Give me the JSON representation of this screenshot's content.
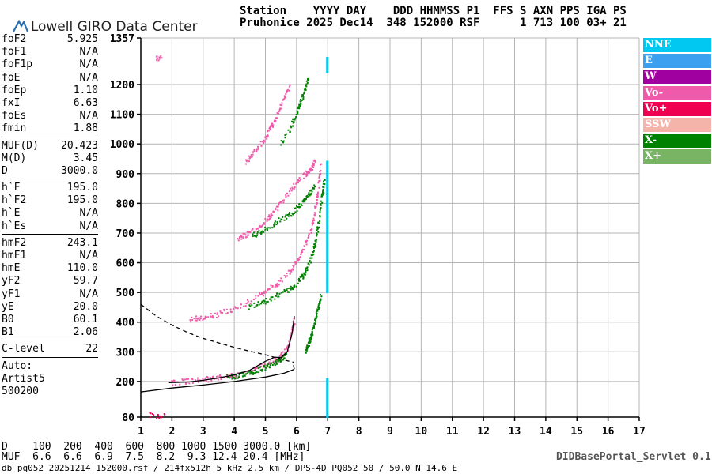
{
  "header": {
    "logo_text": "Lowell GIRO Data Center",
    "row1": "Station    YYYY DAY    DDD HHMMSS P1  FFS S AXN PPS IGA PS",
    "row2": "Pruhonice 2025 Dec14  348 152000 RSF      1 713 100 03+ 21"
  },
  "params": [
    {
      "name": "foF2",
      "value": "5.925"
    },
    {
      "name": "foF1",
      "value": "N/A"
    },
    {
      "name": "foF1p",
      "value": "N/A"
    },
    {
      "name": "foE",
      "value": "N/A"
    },
    {
      "name": "foEp",
      "value": "1.10"
    },
    {
      "name": "fxI",
      "value": "6.63"
    },
    {
      "name": "foEs",
      "value": "N/A"
    },
    {
      "name": "fmin",
      "value": "1.88"
    },
    {
      "name": "MUF(D)",
      "value": "20.423",
      "sep": true
    },
    {
      "name": "M(D)",
      "value": "3.45"
    },
    {
      "name": "D",
      "value": "3000.0"
    },
    {
      "name": "h`F",
      "value": "195.0",
      "sep": true
    },
    {
      "name": "h`F2",
      "value": "195.0"
    },
    {
      "name": "h`E",
      "value": "N/A"
    },
    {
      "name": "h`Es",
      "value": "N/A"
    },
    {
      "name": "hmF2",
      "value": "243.1",
      "sep": true
    },
    {
      "name": "hmF1",
      "value": "N/A"
    },
    {
      "name": "hmE",
      "value": "110.0"
    },
    {
      "name": "yF2",
      "value": "59.7"
    },
    {
      "name": "yF1",
      "value": "N/A"
    },
    {
      "name": "yE",
      "value": "20.0"
    },
    {
      "name": "B0",
      "value": "60.1"
    },
    {
      "name": "B1",
      "value": "2.06"
    },
    {
      "name": "C-level",
      "value": "22",
      "sep": true
    }
  ],
  "auto": [
    "Auto:",
    "Artist5",
    "500200"
  ],
  "legend": [
    {
      "label": "NNE",
      "color": "#00c8f0"
    },
    {
      "label": "E",
      "color": "#3ca0f0"
    },
    {
      "label": "W",
      "color": "#a000a0"
    },
    {
      "label": "Vo-",
      "color": "#f05aaa"
    },
    {
      "label": "Vo+",
      "color": "#f00050"
    },
    {
      "label": "SSW",
      "color": "#f5b4aa"
    },
    {
      "label": "X-",
      "color": "#008200"
    },
    {
      "label": "X+",
      "color": "#78b464"
    }
  ],
  "muf_table": {
    "d_line": "D    100  200  400  600  800 1000 1500 3000.0 [km]",
    "muf_line": "MUF  6.6  6.6  6.9  7.5  8.2  9.3 12.4 20.4 [MHz]"
  },
  "servlet": "DIDBasePortal_Servlet 0.1",
  "footer": "db pq052 20251214 152000.rsf / 214fx512h 5 kHz 2.5 km / DPS-4D PQ052 50 / 50.0 N 14.6 E",
  "chart_data": {
    "type": "scatter",
    "xlim": [
      1,
      17
    ],
    "ylim": [
      80,
      1357
    ],
    "x_ticks": [
      1,
      2,
      3,
      4,
      5,
      6,
      7,
      8,
      9,
      10,
      11,
      12,
      13,
      14,
      15,
      16,
      17
    ],
    "y_ticks": [
      80,
      200,
      300,
      400,
      500,
      600,
      700,
      800,
      900,
      1000,
      1100,
      1200,
      1357
    ],
    "grid": true,
    "series": [
      {
        "color": "#f05aaa",
        "kind": "trace",
        "points": [
          [
            2.6,
            408
          ],
          [
            3.0,
            415
          ],
          [
            3.5,
            425
          ],
          [
            4.0,
            445
          ],
          [
            4.5,
            470
          ],
          [
            5.0,
            500
          ],
          [
            5.4,
            530
          ],
          [
            5.8,
            570
          ],
          [
            6.1,
            620
          ],
          [
            6.3,
            670
          ],
          [
            6.5,
            720
          ],
          [
            6.6,
            780
          ],
          [
            6.7,
            850
          ],
          [
            6.8,
            940
          ]
        ]
      },
      {
        "color": "#008200",
        "kind": "trace",
        "points": [
          [
            4.5,
            450
          ],
          [
            5.0,
            470
          ],
          [
            5.4,
            490
          ],
          [
            5.8,
            510
          ],
          [
            6.1,
            540
          ],
          [
            6.3,
            570
          ],
          [
            6.5,
            620
          ],
          [
            6.6,
            660
          ],
          [
            6.7,
            720
          ],
          [
            6.8,
            800
          ],
          [
            6.9,
            880
          ]
        ]
      },
      {
        "color": "#f05aaa",
        "kind": "trace",
        "points": [
          [
            4.1,
            680
          ],
          [
            4.5,
            700
          ],
          [
            4.9,
            730
          ],
          [
            5.2,
            760
          ],
          [
            5.5,
            800
          ],
          [
            5.8,
            840
          ],
          [
            6.0,
            870
          ],
          [
            6.3,
            900
          ],
          [
            6.5,
            920
          ],
          [
            6.6,
            950
          ]
        ]
      },
      {
        "color": "#008200",
        "kind": "trace",
        "points": [
          [
            4.6,
            690
          ],
          [
            5.0,
            710
          ],
          [
            5.4,
            740
          ],
          [
            5.8,
            760
          ],
          [
            6.1,
            790
          ],
          [
            6.4,
            830
          ],
          [
            6.6,
            860
          ]
        ]
      },
      {
        "color": "#f05aaa",
        "kind": "trace",
        "points": [
          [
            4.4,
            940
          ],
          [
            4.7,
            980
          ],
          [
            5.0,
            1020
          ],
          [
            5.2,
            1060
          ],
          [
            5.4,
            1100
          ],
          [
            5.6,
            1150
          ],
          [
            5.8,
            1200
          ]
        ]
      },
      {
        "color": "#008200",
        "kind": "trace",
        "points": [
          [
            5.5,
            1000
          ],
          [
            5.8,
            1050
          ],
          [
            6.0,
            1100
          ],
          [
            6.2,
            1160
          ],
          [
            6.4,
            1230
          ]
        ]
      },
      {
        "color": "#f05aaa",
        "kind": "trace",
        "points": [
          [
            2.0,
            196
          ],
          [
            2.5,
            200
          ],
          [
            3.0,
            205
          ],
          [
            3.5,
            212
          ],
          [
            4.0,
            220
          ],
          [
            4.5,
            235
          ],
          [
            5.0,
            255
          ],
          [
            5.3,
            270
          ],
          [
            5.5,
            285
          ],
          [
            5.7,
            310
          ],
          [
            5.85,
            370
          ],
          [
            5.95,
            410
          ]
        ]
      },
      {
        "color": "#008200",
        "kind": "trace",
        "points": [
          [
            3.8,
            215
          ],
          [
            4.2,
            220
          ],
          [
            4.6,
            232
          ],
          [
            5.0,
            248
          ],
          [
            5.3,
            262
          ],
          [
            5.5,
            275
          ],
          [
            5.7,
            290
          ]
        ]
      },
      {
        "color": "#008200",
        "kind": "trace",
        "points": [
          [
            6.3,
            300
          ],
          [
            6.4,
            330
          ],
          [
            6.5,
            360
          ],
          [
            6.6,
            400
          ],
          [
            6.7,
            450
          ],
          [
            6.8,
            490
          ]
        ]
      },
      {
        "color": "#00c8f0",
        "kind": "column",
        "x": 7.0,
        "ymin": 500,
        "ymax": 940
      },
      {
        "color": "#00c8f0",
        "kind": "column",
        "x": 7.0,
        "ymin": 1240,
        "ymax": 1290
      },
      {
        "color": "#00c8f0",
        "kind": "column",
        "x": 7.0,
        "ymin": 80,
        "ymax": 210
      },
      {
        "color": "#f05aaa",
        "kind": "trace",
        "points": [
          [
            1.5,
            1290
          ],
          [
            1.7,
            1291
          ]
        ]
      },
      {
        "color": "#f00050",
        "kind": "trace",
        "points": [
          [
            1.3,
            86
          ],
          [
            1.8,
            85
          ]
        ]
      }
    ],
    "profile_lines": [
      {
        "style": "solid",
        "color": "#000",
        "points": [
          [
            1.0,
            165
          ],
          [
            2.0,
            178
          ],
          [
            3.0,
            188
          ],
          [
            4.0,
            200
          ],
          [
            5.0,
            215
          ],
          [
            5.6,
            228
          ],
          [
            5.9,
            240
          ],
          [
            5.925,
            243.1
          ],
          [
            5.9,
            255
          ]
        ]
      },
      {
        "style": "solid",
        "color": "#000",
        "points": [
          [
            1.88,
            196
          ],
          [
            2.5,
            198
          ],
          [
            3.0,
            204
          ],
          [
            3.5,
            212
          ],
          [
            4.0,
            222
          ],
          [
            4.5,
            238
          ],
          [
            5.0,
            268
          ],
          [
            5.3,
            282
          ],
          [
            5.5,
            280
          ],
          [
            5.7,
            300
          ],
          [
            5.85,
            360
          ],
          [
            5.93,
            420
          ]
        ]
      },
      {
        "style": "dashed",
        "color": "#000",
        "points": [
          [
            1.0,
            460
          ],
          [
            1.5,
            420
          ],
          [
            2.0,
            390
          ],
          [
            2.5,
            365
          ],
          [
            3.0,
            345
          ],
          [
            3.5,
            330
          ],
          [
            4.0,
            315
          ],
          [
            4.5,
            302
          ],
          [
            5.0,
            290
          ],
          [
            5.5,
            275
          ],
          [
            5.9,
            265
          ]
        ]
      }
    ]
  }
}
